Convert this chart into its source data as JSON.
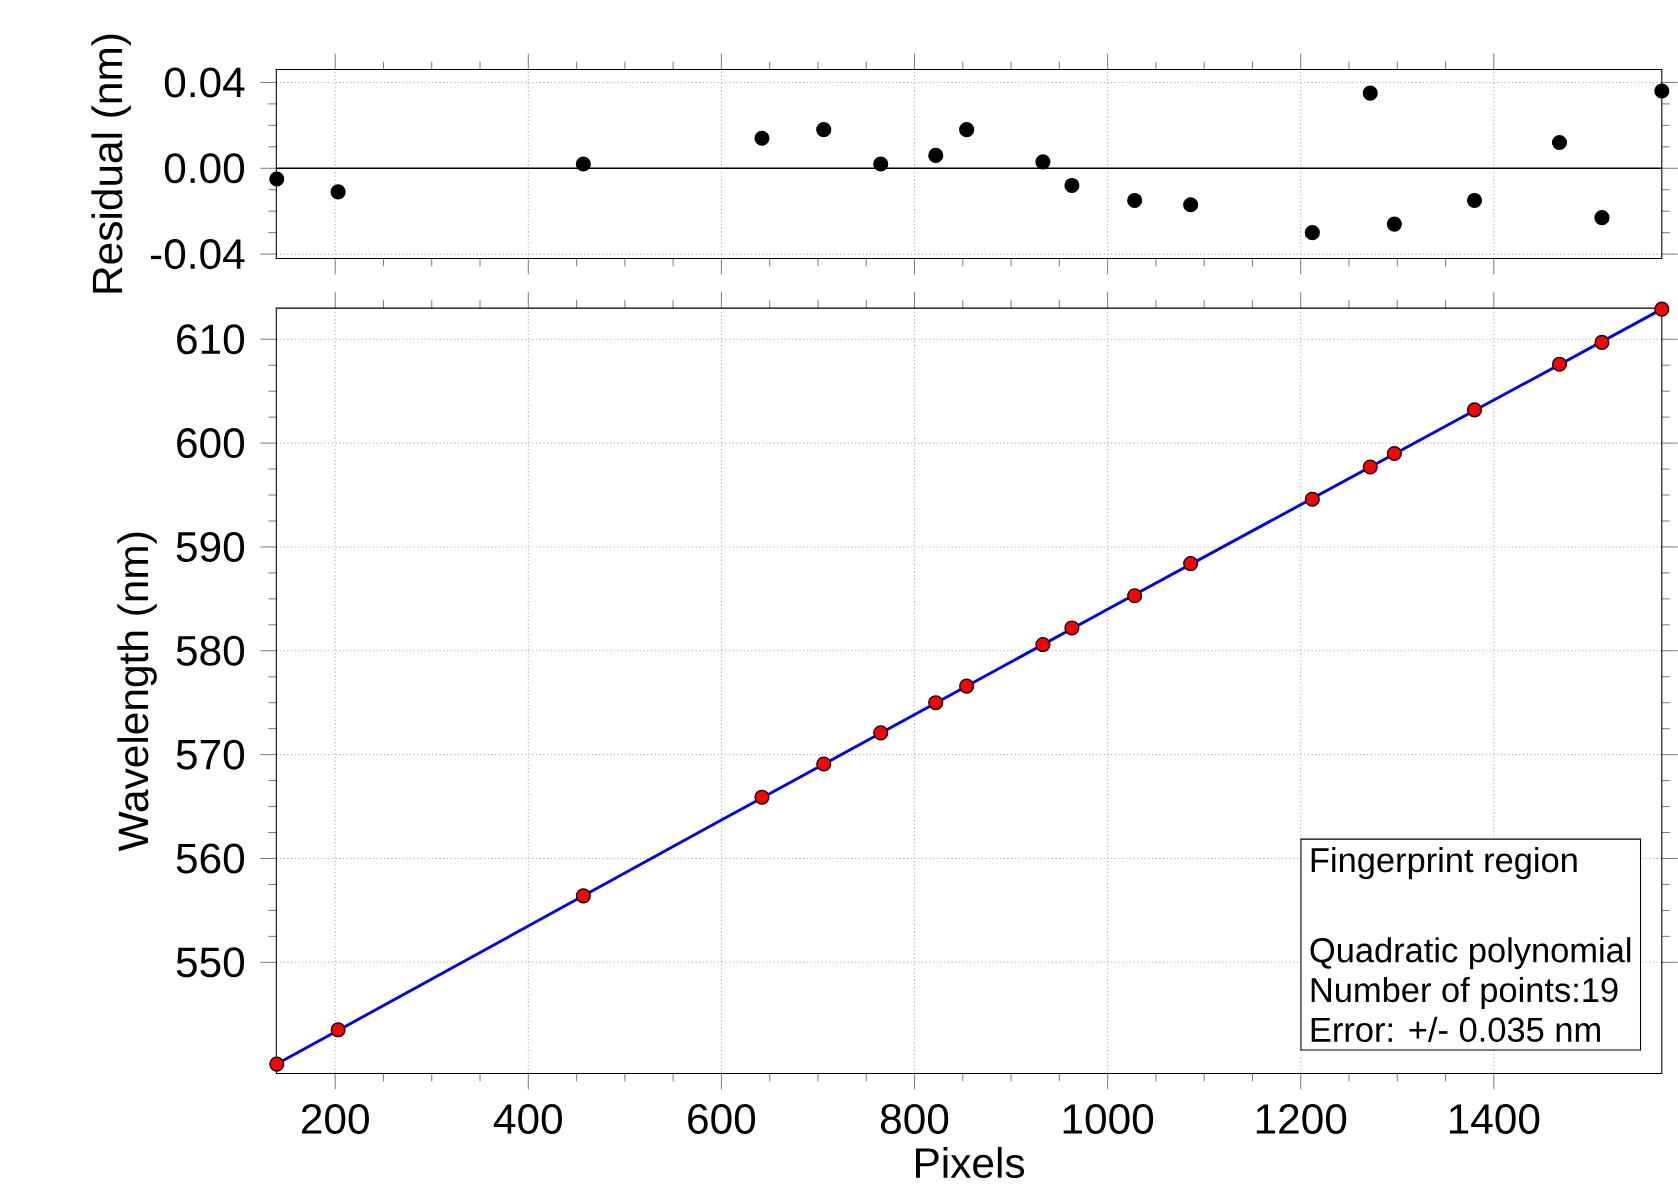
{
  "chart_data": [
    {
      "type": "scatter",
      "ylabel": "Residual (nm)",
      "xlim": [
        139,
        1574
      ],
      "ylim": [
        -0.042,
        0.046
      ],
      "xticks": [
        200,
        400,
        600,
        800,
        1000,
        1200,
        1400
      ],
      "yticks": [
        {
          "value": -0.04,
          "label": "-0.04"
        },
        {
          "value": 0,
          "label": "0.00"
        },
        {
          "value": 0.04,
          "label": "0.04"
        }
      ],
      "tick_labels": "y",
      "grid": true,
      "ref_lines": [
        {
          "axis": "y",
          "value": 0
        }
      ],
      "x": [
        139.5,
        203,
        457,
        642,
        706,
        765,
        822,
        854,
        933,
        963,
        1028,
        1086,
        1212,
        1272,
        1297,
        1380,
        1468,
        1512,
        1574
      ],
      "series": [
        {
          "color": "#000000",
          "values": [
            -0.005,
            -0.011,
            0.002,
            0.014,
            0.018,
            0.002,
            0.006,
            0.018,
            0.003,
            -0.008,
            -0.015,
            -0.017,
            -0.03,
            0.035,
            -0.026,
            -0.015,
            0.012,
            -0.023,
            0.036
          ]
        }
      ]
    },
    {
      "type": "scatter",
      "xlabel": "Pixels",
      "ylabel": "Wavelength (nm)",
      "xlim": [
        139,
        1574
      ],
      "ylim": [
        539.3,
        613
      ],
      "xticks": [
        200,
        400,
        600,
        800,
        1000,
        1200,
        1400
      ],
      "yticks": [
        550,
        560,
        570,
        580,
        590,
        600,
        610
      ],
      "grid": true,
      "x": [
        139.5,
        203,
        457,
        642,
        706,
        765,
        822,
        854,
        933,
        963,
        1028,
        1086,
        1212,
        1272,
        1297,
        1380,
        1468,
        1512,
        1574
      ],
      "series": [
        {
          "color": "#ff0000",
          "values": [
            540.2,
            543.5,
            556.4,
            565.9,
            569.1,
            572.1,
            575.0,
            576.6,
            580.6,
            582.2,
            585.3,
            588.4,
            594.6,
            597.7,
            599.0,
            603.2,
            607.6,
            609.7,
            612.9
          ]
        },
        {
          "type": "line",
          "color": "#0000ff",
          "x": [
            139.5,
            600,
            1000,
            1574
          ],
          "values": [
            540.2,
            563.7,
            584.0,
            612.9
          ]
        }
      ],
      "annotations": [
        "Fingerprint region",
        "Quadratic polynomial",
        "Number of points:19",
        "Error: +/- 0.035 nm"
      ]
    }
  ]
}
